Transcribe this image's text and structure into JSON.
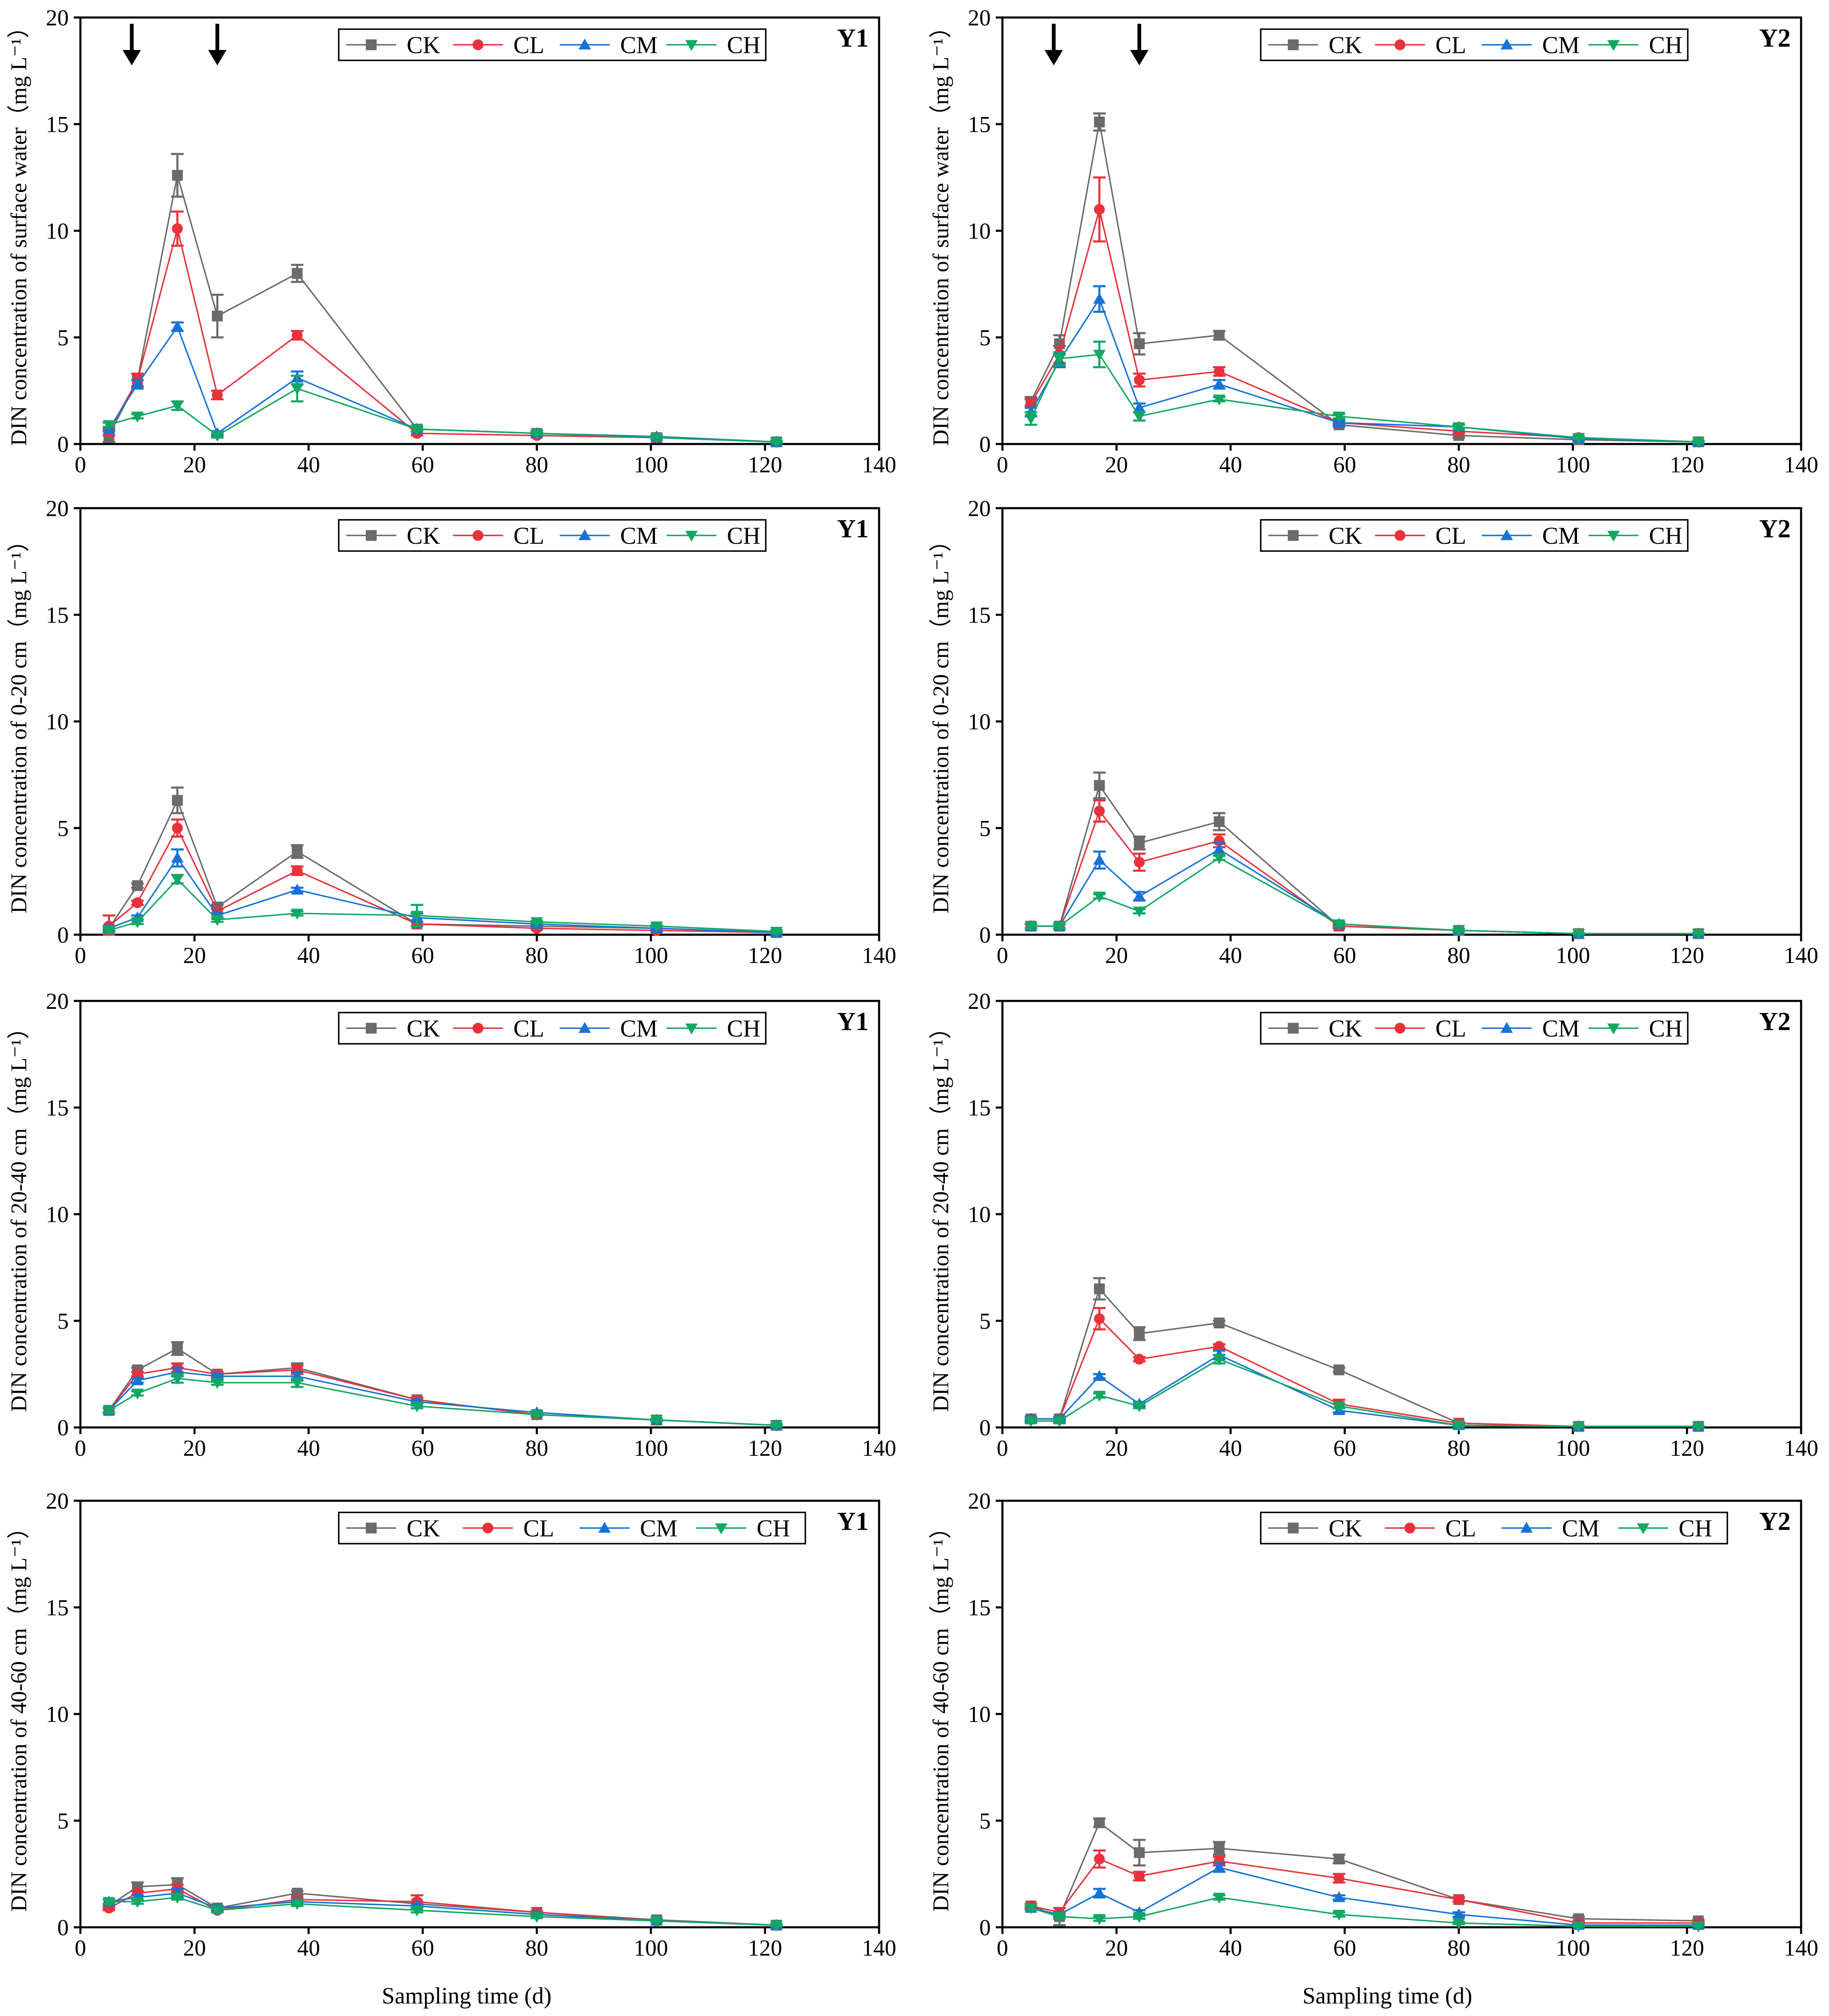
{
  "figure": {
    "xlabel": "Sampling time (d)",
    "series_colors": {
      "CK": "#6b6b6b",
      "CL": "#e8323b",
      "CM": "#1673d6",
      "CH": "#12a863"
    },
    "fertilization_marker": "down-arrow-icon"
  },
  "chart_data": [
    {
      "type": "line",
      "panel": "Y1",
      "row": 1,
      "title": "Y1",
      "ylabel": "DIN concentration of surface water（mg L⁻¹）",
      "xlabel": "",
      "xlim": [
        0,
        140
      ],
      "ylim": [
        0,
        20
      ],
      "xticks": [
        0,
        20,
        40,
        60,
        80,
        100,
        120,
        140
      ],
      "yticks": [
        0,
        5,
        10,
        15,
        20
      ],
      "x": [
        5,
        10,
        17,
        24,
        38,
        59,
        80,
        101,
        122
      ],
      "arrows_at_x": [
        9,
        24
      ],
      "series": [
        {
          "name": "CK",
          "values": [
            0.4,
            3.0,
            12.6,
            6.0,
            8.0,
            0.7,
            0.5,
            0.3,
            0.1
          ],
          "errors": [
            0.3,
            0.3,
            1.0,
            1.0,
            0.4,
            0.1,
            0.1,
            0.05,
            0.05
          ]
        },
        {
          "name": "CL",
          "values": [
            0.6,
            3.0,
            10.1,
            2.3,
            5.1,
            0.5,
            0.4,
            0.3,
            0.1
          ],
          "errors": [
            0.2,
            0.3,
            0.8,
            0.2,
            0.2,
            0.1,
            0.05,
            0.05,
            0.05
          ]
        },
        {
          "name": "CM",
          "values": [
            0.7,
            2.8,
            5.5,
            0.5,
            3.1,
            0.7,
            0.5,
            0.35,
            0.1
          ],
          "errors": [
            0.1,
            0.2,
            0.2,
            0.1,
            0.3,
            0.1,
            0.05,
            0.05,
            0.05
          ]
        },
        {
          "name": "CH",
          "values": [
            0.9,
            1.3,
            1.8,
            0.4,
            2.6,
            0.7,
            0.5,
            0.3,
            0.1
          ],
          "errors": [
            0.1,
            0.1,
            0.2,
            0.1,
            0.6,
            0.1,
            0.05,
            0.05,
            0.05
          ]
        }
      ]
    },
    {
      "type": "line",
      "panel": "Y2",
      "row": 1,
      "title": "Y2",
      "ylabel": "DIN concentration of surface water（mg L⁻¹）",
      "xlabel": "",
      "xlim": [
        0,
        140
      ],
      "ylim": [
        0,
        20
      ],
      "xticks": [
        0,
        20,
        40,
        60,
        80,
        100,
        120,
        140
      ],
      "yticks": [
        0,
        5,
        10,
        15,
        20
      ],
      "x": [
        5,
        10,
        17,
        24,
        38,
        59,
        80,
        101,
        122
      ],
      "arrows_at_x": [
        9,
        24
      ],
      "series": [
        {
          "name": "CK",
          "values": [
            2.0,
            4.7,
            15.1,
            4.7,
            5.1,
            0.9,
            0.4,
            0.2,
            0.1
          ],
          "errors": [
            0.2,
            0.4,
            0.4,
            0.5,
            0.2,
            0.1,
            0.1,
            0.05,
            0.05
          ]
        },
        {
          "name": "CL",
          "values": [
            1.9,
            4.2,
            11.0,
            3.0,
            3.4,
            1.0,
            0.6,
            0.3,
            0.1
          ],
          "errors": [
            0.2,
            0.4,
            1.5,
            0.3,
            0.2,
            0.1,
            0.1,
            0.05,
            0.05
          ]
        },
        {
          "name": "CM",
          "values": [
            1.5,
            3.9,
            6.8,
            1.7,
            2.8,
            1.0,
            0.8,
            0.25,
            0.1
          ],
          "errors": [
            0.2,
            0.3,
            0.6,
            0.2,
            0.2,
            0.1,
            0.1,
            0.05,
            0.05
          ]
        },
        {
          "name": "CH",
          "values": [
            1.2,
            4.0,
            4.2,
            1.3,
            2.1,
            1.3,
            0.8,
            0.3,
            0.1
          ],
          "errors": [
            0.3,
            0.3,
            0.6,
            0.2,
            0.1,
            0.1,
            0.1,
            0.05,
            0.05
          ]
        }
      ]
    },
    {
      "type": "line",
      "panel": "Y1",
      "row": 2,
      "title": "Y1",
      "ylabel": "DIN concentration of  0-20 cm（mg L⁻¹）",
      "xlabel": "",
      "xlim": [
        0,
        140
      ],
      "ylim": [
        0,
        20
      ],
      "xticks": [
        0,
        20,
        40,
        60,
        80,
        100,
        120,
        140
      ],
      "yticks": [
        0,
        5,
        10,
        15,
        20
      ],
      "x": [
        5,
        10,
        17,
        24,
        38,
        59,
        80,
        101,
        122
      ],
      "series": [
        {
          "name": "CK",
          "values": [
            0.3,
            2.3,
            6.3,
            1.3,
            3.9,
            0.5,
            0.4,
            0.3,
            0.1
          ],
          "errors": [
            0.1,
            0.1,
            0.6,
            0.1,
            0.3,
            0.1,
            0.05,
            0.05,
            0.05
          ]
        },
        {
          "name": "CL",
          "values": [
            0.4,
            1.5,
            5.0,
            1.1,
            3.0,
            0.5,
            0.3,
            0.2,
            0.1
          ],
          "errors": [
            0.5,
            0.1,
            0.4,
            0.1,
            0.2,
            0.1,
            0.05,
            0.05,
            0.05
          ]
        },
        {
          "name": "CM",
          "values": [
            0.3,
            0.8,
            3.6,
            0.9,
            2.1,
            0.8,
            0.5,
            0.3,
            0.1
          ],
          "errors": [
            0.1,
            0.1,
            0.4,
            0.1,
            0.1,
            0.2,
            0.05,
            0.05,
            0.05
          ]
        },
        {
          "name": "CH",
          "values": [
            0.2,
            0.6,
            2.6,
            0.7,
            1.0,
            0.9,
            0.6,
            0.4,
            0.15
          ],
          "errors": [
            0.1,
            0.1,
            0.2,
            0.1,
            0.1,
            0.5,
            0.05,
            0.05,
            0.05
          ]
        }
      ]
    },
    {
      "type": "line",
      "panel": "Y2",
      "row": 2,
      "title": "Y2",
      "ylabel": "DIN concentration of  0-20 cm（mg L⁻¹）",
      "xlabel": "",
      "xlim": [
        0,
        140
      ],
      "ylim": [
        0,
        20
      ],
      "xticks": [
        0,
        20,
        40,
        60,
        80,
        100,
        120,
        140
      ],
      "yticks": [
        0,
        5,
        10,
        15,
        20
      ],
      "x": [
        5,
        10,
        17,
        24,
        38,
        59,
        80,
        101,
        122
      ],
      "series": [
        {
          "name": "CK",
          "values": [
            0.4,
            0.4,
            7.0,
            4.3,
            5.3,
            0.4,
            0.2,
            0.05,
            0.05
          ],
          "errors": [
            0.1,
            0.1,
            0.6,
            0.3,
            0.4,
            0.1,
            0.05,
            0.02,
            0.02
          ]
        },
        {
          "name": "CL",
          "values": [
            0.4,
            0.4,
            5.8,
            3.4,
            4.4,
            0.4,
            0.2,
            0.05,
            0.05
          ],
          "errors": [
            0.1,
            0.1,
            0.5,
            0.4,
            0.3,
            0.1,
            0.05,
            0.02,
            0.02
          ]
        },
        {
          "name": "CM",
          "values": [
            0.4,
            0.4,
            3.5,
            1.8,
            4.0,
            0.5,
            0.2,
            0.05,
            0.05
          ],
          "errors": [
            0.1,
            0.1,
            0.4,
            0.2,
            0.3,
            0.1,
            0.05,
            0.02,
            0.02
          ]
        },
        {
          "name": "CH",
          "values": [
            0.4,
            0.4,
            1.8,
            1.1,
            3.6,
            0.5,
            0.2,
            0.05,
            0.05
          ],
          "errors": [
            0.1,
            0.1,
            0.1,
            0.1,
            0.1,
            0.1,
            0.05,
            0.02,
            0.02
          ]
        }
      ]
    },
    {
      "type": "line",
      "panel": "Y1",
      "row": 3,
      "title": "Y1",
      "ylabel": "DIN concentration of  20-40 cm（mg L⁻¹）",
      "xlabel": "",
      "xlim": [
        0,
        140
      ],
      "ylim": [
        0,
        20
      ],
      "xticks": [
        0,
        20,
        40,
        60,
        80,
        100,
        120,
        140
      ],
      "yticks": [
        0,
        5,
        10,
        15,
        20
      ],
      "x": [
        5,
        10,
        17,
        24,
        38,
        59,
        80,
        101,
        122
      ],
      "series": [
        {
          "name": "CK",
          "values": [
            0.8,
            2.7,
            3.7,
            2.5,
            2.8,
            1.3,
            0.6,
            0.35,
            0.1
          ],
          "errors": [
            0.1,
            0.1,
            0.3,
            0.1,
            0.2,
            0.1,
            0.05,
            0.05,
            0.05
          ]
        },
        {
          "name": "CL",
          "values": [
            0.8,
            2.5,
            2.8,
            2.5,
            2.7,
            1.3,
            0.6,
            0.35,
            0.1
          ],
          "errors": [
            0.1,
            0.1,
            0.2,
            0.1,
            0.2,
            0.1,
            0.05,
            0.05,
            0.05
          ]
        },
        {
          "name": "CM",
          "values": [
            0.8,
            2.2,
            2.6,
            2.4,
            2.4,
            1.2,
            0.7,
            0.35,
            0.1
          ],
          "errors": [
            0.1,
            0.1,
            0.2,
            0.1,
            0.2,
            0.1,
            0.05,
            0.05,
            0.05
          ]
        },
        {
          "name": "CH",
          "values": [
            0.8,
            1.6,
            2.3,
            2.1,
            2.1,
            1.0,
            0.6,
            0.35,
            0.1
          ],
          "errors": [
            0.1,
            0.1,
            0.2,
            0.1,
            0.2,
            0.1,
            0.05,
            0.05,
            0.05
          ]
        }
      ]
    },
    {
      "type": "line",
      "panel": "Y2",
      "row": 3,
      "title": "Y2",
      "ylabel": "DIN concentration of  20-40 cm（mg L⁻¹）",
      "xlabel": "",
      "xlim": [
        0,
        140
      ],
      "ylim": [
        0,
        20
      ],
      "xticks": [
        0,
        20,
        40,
        60,
        80,
        100,
        120,
        140
      ],
      "yticks": [
        0,
        5,
        10,
        15,
        20
      ],
      "x": [
        5,
        10,
        17,
        24,
        38,
        59,
        80,
        101,
        122
      ],
      "series": [
        {
          "name": "CK",
          "values": [
            0.4,
            0.4,
            6.5,
            4.4,
            4.9,
            2.7,
            0.2,
            0.05,
            0.05
          ],
          "errors": [
            0.1,
            0.1,
            0.5,
            0.3,
            0.1,
            0.1,
            0.05,
            0.02,
            0.02
          ]
        },
        {
          "name": "CL",
          "values": [
            0.4,
            0.4,
            5.1,
            3.2,
            3.8,
            1.1,
            0.2,
            0.05,
            0.05
          ],
          "errors": [
            0.1,
            0.1,
            0.5,
            0.1,
            0.1,
            0.2,
            0.05,
            0.02,
            0.02
          ]
        },
        {
          "name": "CM",
          "values": [
            0.4,
            0.4,
            2.4,
            1.1,
            3.4,
            0.8,
            0.1,
            0.05,
            0.05
          ],
          "errors": [
            0.1,
            0.1,
            0.1,
            0.1,
            0.2,
            0.1,
            0.05,
            0.02,
            0.02
          ]
        },
        {
          "name": "CH",
          "values": [
            0.3,
            0.3,
            1.5,
            1.0,
            3.2,
            1.0,
            0.1,
            0.05,
            0.05
          ],
          "errors": [
            0.1,
            0.1,
            0.1,
            0.1,
            0.2,
            0.1,
            0.05,
            0.02,
            0.02
          ]
        }
      ]
    },
    {
      "type": "line",
      "panel": "Y1",
      "row": 4,
      "title": "Y1",
      "ylabel": "DIN concentration of  40-60 cm（mg L⁻¹）",
      "xlabel": "",
      "xlim": [
        0,
        140
      ],
      "ylim": [
        0,
        20
      ],
      "xticks": [
        0,
        20,
        40,
        60,
        80,
        100,
        120,
        140
      ],
      "yticks": [
        0,
        5,
        10,
        15,
        20
      ],
      "x": [
        5,
        10,
        17,
        24,
        38,
        59,
        80,
        101,
        122
      ],
      "series": [
        {
          "name": "CK",
          "values": [
            1.0,
            1.9,
            2.0,
            0.9,
            1.6,
            1.1,
            0.7,
            0.35,
            0.1
          ],
          "errors": [
            0.1,
            0.2,
            0.3,
            0.1,
            0.1,
            0.1,
            0.05,
            0.05,
            0.05
          ]
        },
        {
          "name": "CL",
          "values": [
            0.9,
            1.6,
            1.8,
            0.8,
            1.3,
            1.2,
            0.7,
            0.3,
            0.1
          ],
          "errors": [
            0.1,
            0.1,
            0.2,
            0.1,
            0.1,
            0.3,
            0.05,
            0.05,
            0.05
          ]
        },
        {
          "name": "CM",
          "values": [
            1.2,
            1.4,
            1.6,
            0.9,
            1.2,
            1.0,
            0.6,
            0.3,
            0.1
          ],
          "errors": [
            0.1,
            0.1,
            0.2,
            0.1,
            0.1,
            0.1,
            0.05,
            0.05,
            0.05
          ]
        },
        {
          "name": "CH",
          "values": [
            1.2,
            1.2,
            1.4,
            0.8,
            1.1,
            0.8,
            0.5,
            0.3,
            0.1
          ],
          "errors": [
            0.1,
            0.1,
            0.1,
            0.1,
            0.1,
            0.1,
            0.05,
            0.05,
            0.05
          ]
        }
      ]
    },
    {
      "type": "line",
      "panel": "Y2",
      "row": 4,
      "title": "Y2",
      "ylabel": "DIN concentration of  40-60 cm（mg L⁻¹）",
      "xlabel": "",
      "xlim": [
        0,
        140
      ],
      "ylim": [
        0,
        20
      ],
      "xticks": [
        0,
        20,
        40,
        60,
        80,
        100,
        120,
        140
      ],
      "yticks": [
        0,
        5,
        10,
        15,
        20
      ],
      "x": [
        5,
        10,
        17,
        24,
        38,
        59,
        80,
        101,
        122
      ],
      "series": [
        {
          "name": "CK",
          "values": [
            1.0,
            0.5,
            4.9,
            3.5,
            3.7,
            3.2,
            1.3,
            0.4,
            0.3
          ],
          "errors": [
            0.1,
            0.4,
            0.2,
            0.6,
            0.3,
            0.2,
            0.1,
            0.1,
            0.05
          ]
        },
        {
          "name": "CL",
          "values": [
            1.0,
            0.7,
            3.2,
            2.4,
            3.1,
            2.3,
            1.3,
            0.2,
            0.2
          ],
          "errors": [
            0.1,
            0.2,
            0.4,
            0.2,
            0.2,
            0.2,
            0.1,
            0.05,
            0.05
          ]
        },
        {
          "name": "CM",
          "values": [
            0.9,
            0.6,
            1.6,
            0.7,
            2.8,
            1.4,
            0.6,
            0.1,
            0.1
          ],
          "errors": [
            0.1,
            0.1,
            0.2,
            0.1,
            0.2,
            0.1,
            0.1,
            0.05,
            0.05
          ]
        },
        {
          "name": "CH",
          "values": [
            0.9,
            0.5,
            0.4,
            0.5,
            1.4,
            0.6,
            0.2,
            0.05,
            0.05
          ],
          "errors": [
            0.1,
            0.1,
            0.1,
            0.1,
            0.1,
            0.1,
            0.05,
            0.02,
            0.02
          ]
        }
      ]
    }
  ]
}
